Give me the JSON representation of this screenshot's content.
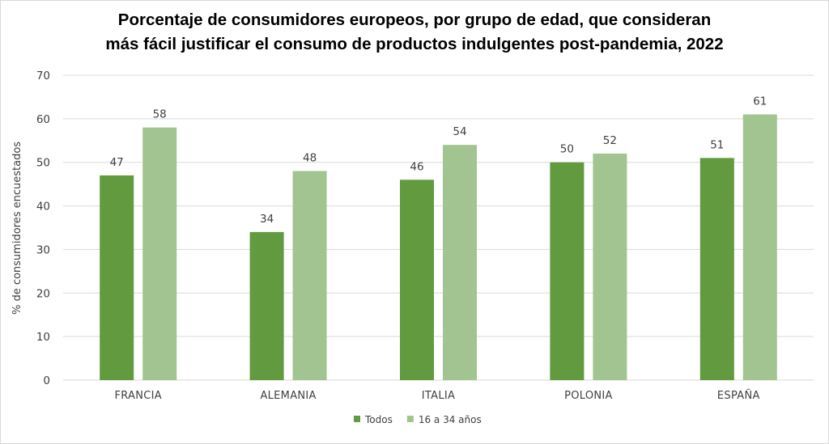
{
  "chart_data": {
    "type": "bar",
    "title_lines": [
      "Porcentaje de consumidores europeos, por grupo de edad, que consideran",
      "más fácil justificar el consumo de productos indulgentes post-pandemia, 2022"
    ],
    "xlabel": "",
    "ylabel": "% de consumidores encuestados",
    "ylim": [
      0,
      70
    ],
    "yticks": [
      0,
      10,
      20,
      30,
      40,
      50,
      60,
      70
    ],
    "grid": true,
    "legend_position": "bottom",
    "categories": [
      "FRANCIA",
      "ALEMANIA",
      "ITALIA",
      "POLONIA",
      "ESPAÑA"
    ],
    "series": [
      {
        "name": "Todos",
        "color": "#629a3f",
        "values": [
          47,
          34,
          46,
          50,
          51
        ]
      },
      {
        "name": "16 a 34 años",
        "color": "#a2c490",
        "values": [
          58,
          48,
          54,
          52,
          61
        ]
      }
    ],
    "data_labels": true
  }
}
